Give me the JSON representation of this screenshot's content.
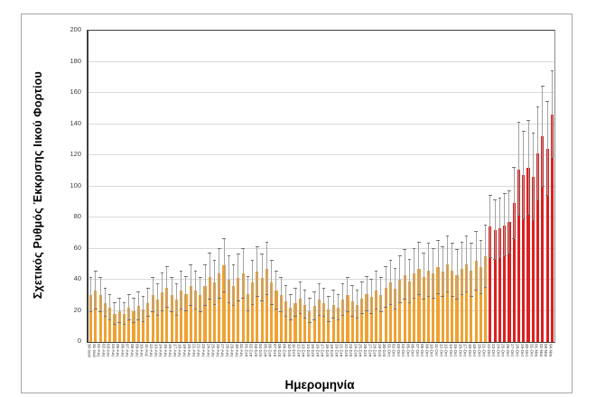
{
  "figure": {
    "x_axis_title": "Ημερομηνία",
    "y_axis_title": "Σχετικός Ρυθμός Έκκρισης Ιικού Φορτίου"
  },
  "chart_data": {
    "type": "bar",
    "title": "",
    "xlabel": "Ημερομηνία",
    "ylabel": "Σχετικός Ρυθμός Έκκρισης Ιικού Φορτίου",
    "ylim": [
      0,
      200
    ],
    "ytick_step": 20,
    "grid": true,
    "legend": false,
    "error_bars": true,
    "colors": {
      "baseline_bar": "#f0a232",
      "recent_bar": "#dd1f1f",
      "error_line": "#a3a3a3",
      "error_cap": "#737373",
      "gridline": "#d9d9d9",
      "axis": "#404040"
    },
    "recent_start_index": 84,
    "recent_start_category": "22-Οκτ",
    "categories": [
      "30-Ιουλ",
      "31-Ιουλ",
      "01-Αυγ",
      "02-Αυγ",
      "03-Αυγ",
      "04-Αυγ",
      "05-Αυγ",
      "06-Αυγ",
      "07-Αυγ",
      "08-Αυγ",
      "09-Αυγ",
      "10-Αυγ",
      "11-Αυγ",
      "12-Αυγ",
      "13-Αυγ",
      "14-Αυγ",
      "15-Αυγ",
      "16-Αυγ",
      "17-Αυγ",
      "18-Αυγ",
      "19-Αυγ",
      "20-Αυγ",
      "21-Αυγ",
      "22-Αυγ",
      "23-Αυγ",
      "24-Αυγ",
      "25-Αυγ",
      "26-Αυγ",
      "27-Αυγ",
      "28-Αυγ",
      "29-Αυγ",
      "30-Αυγ",
      "31-Αυγ",
      "01-Σεπ",
      "02-Σεπ",
      "03-Σεπ",
      "04-Σεπ",
      "05-Σεπ",
      "06-Σεπ",
      "07-Σεπ",
      "08-Σεπ",
      "09-Σεπ",
      "10-Σεπ",
      "11-Σεπ",
      "12-Σεπ",
      "13-Σεπ",
      "14-Σεπ",
      "15-Σεπ",
      "16-Σεπ",
      "17-Σεπ",
      "18-Σεπ",
      "19-Σεπ",
      "20-Σεπ",
      "21-Σεπ",
      "22-Σεπ",
      "23-Σεπ",
      "24-Σεπ",
      "25-Σεπ",
      "26-Σεπ",
      "27-Σεπ",
      "28-Σεπ",
      "29-Σεπ",
      "30-Σεπ",
      "01-Οκτ",
      "02-Οκτ",
      "03-Οκτ",
      "04-Οκτ",
      "05-Οκτ",
      "06-Οκτ",
      "07-Οκτ",
      "08-Οκτ",
      "09-Οκτ",
      "10-Οκτ",
      "11-Οκτ",
      "12-Οκτ",
      "13-Οκτ",
      "14-Οκτ",
      "15-Οκτ",
      "16-Οκτ",
      "17-Οκτ",
      "18-Οκτ",
      "19-Οκτ",
      "20-Οκτ",
      "21-Οκτ",
      "22-Οκτ",
      "23-Οκτ",
      "24-Οκτ",
      "25-Οκτ",
      "26-Οκτ",
      "27-Οκτ",
      "28-Οκτ",
      "29-Οκτ",
      "30-Οκτ",
      "31-Οκτ",
      "01-Νοε",
      "02-Νοε",
      "03-Νοε",
      "04-Νοε"
    ],
    "series": [
      {
        "name": "Σχετικός ρυθμός έκκρισης ιικού φορτίου",
        "values": [
          30,
          33,
          30,
          25,
          22,
          18,
          20,
          18,
          22,
          20,
          23,
          21,
          25,
          30,
          27,
          32,
          35,
          30,
          27,
          33,
          31,
          36,
          33,
          30,
          36,
          42,
          38,
          44,
          49,
          40,
          36,
          41,
          44,
          31,
          38,
          45,
          41,
          47,
          38,
          33,
          30,
          26,
          22,
          25,
          28,
          24,
          20,
          23,
          27,
          25,
          21,
          24,
          22,
          27,
          30,
          26,
          24,
          28,
          31,
          29,
          33,
          30,
          35,
          38,
          34,
          40,
          43,
          39,
          44,
          47,
          42,
          46,
          44,
          48,
          45,
          50,
          46,
          43,
          47,
          50,
          46,
          52,
          48,
          55,
          74,
          72,
          73,
          75,
          77,
          89,
          111,
          107,
          112,
          106,
          121,
          132,
          124,
          146
        ],
        "errors": [
          11,
          12,
          11,
          9,
          8,
          7,
          8,
          7,
          8,
          8,
          9,
          8,
          9,
          11,
          10,
          12,
          13,
          11,
          10,
          12,
          11,
          13,
          12,
          11,
          13,
          15,
          14,
          16,
          17,
          15,
          13,
          15,
          16,
          11,
          14,
          16,
          15,
          17,
          14,
          12,
          11,
          10,
          8,
          9,
          10,
          9,
          8,
          9,
          10,
          9,
          8,
          9,
          8,
          10,
          11,
          10,
          9,
          10,
          11,
          11,
          12,
          11,
          13,
          14,
          13,
          15,
          16,
          14,
          16,
          17,
          15,
          17,
          16,
          17,
          16,
          18,
          17,
          16,
          17,
          18,
          17,
          19,
          17,
          20,
          20,
          19,
          19,
          20,
          20,
          23,
          30,
          28,
          30,
          28,
          30,
          32,
          30,
          28
        ]
      }
    ]
  }
}
